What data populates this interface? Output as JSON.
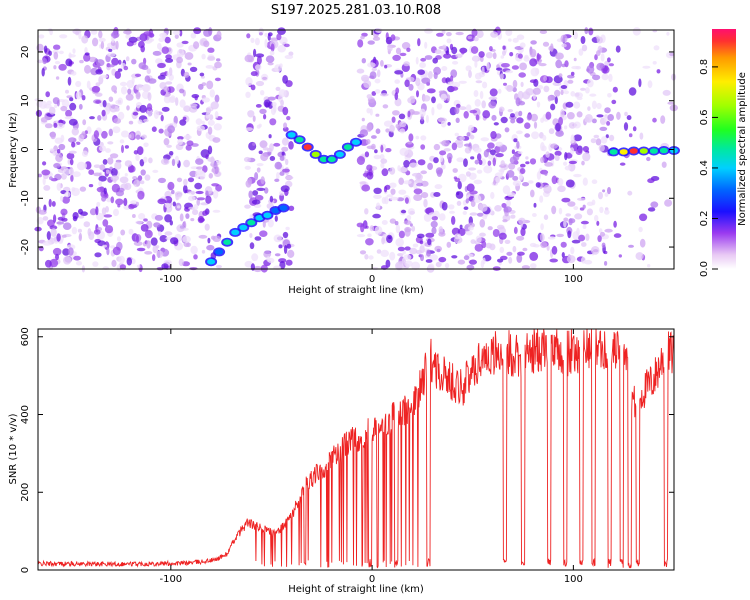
{
  "chart_data": [
    {
      "type": "heatmap",
      "title": "S197.2025.281.03.10.R08",
      "xlabel": "Height of straight line (km)",
      "ylabel": "Frequency (Hz)",
      "xlim": [
        -166,
        150
      ],
      "ylim": [
        -24.5,
        24.5
      ],
      "xticks": [
        -100,
        0,
        100
      ],
      "xtick_labels": [
        "-100",
        "0",
        "100"
      ],
      "yticks": [
        -20,
        -10,
        0,
        10,
        20
      ],
      "ytick_labels": [
        "-20",
        "-10",
        "0",
        "10",
        "20"
      ],
      "colorbar": {
        "label": "Normalized spectral amplitude",
        "range": [
          0,
          0.95
        ],
        "ticks": [
          0.0,
          0.2,
          0.4,
          0.6,
          0.8
        ],
        "tick_labels": [
          "0.0",
          "0.2",
          "0.4",
          "0.6",
          "0.8"
        ]
      },
      "blank_regions_km": [
        [
          -76,
          -62
        ],
        [
          -40,
          -6
        ]
      ],
      "signal_track": {
        "x_km": [
          -80,
          -76,
          -72,
          -68,
          -64,
          -60,
          -56,
          -52,
          -48,
          -44,
          -40,
          -36,
          -32,
          -28,
          -24,
          -20,
          -16,
          -12,
          -8,
          120,
          125,
          130,
          135,
          140,
          145,
          150
        ],
        "freq_hz": [
          -23,
          -21,
          -19,
          -17,
          -16,
          -15,
          -14,
          -13.5,
          -12.5,
          -12,
          3,
          2,
          0.5,
          -1,
          -2,
          -2,
          -1,
          0.5,
          1.5,
          -0.5,
          -0.5,
          -0.3,
          -0.3,
          -0.3,
          -0.2,
          -0.2
        ],
        "amplitude": [
          0.35,
          0.3,
          0.45,
          0.4,
          0.35,
          0.45,
          0.4,
          0.35,
          0.3,
          0.25,
          0.4,
          0.5,
          0.9,
          0.6,
          0.45,
          0.5,
          0.4,
          0.45,
          0.35,
          0.5,
          0.7,
          0.95,
          0.6,
          0.5,
          0.45,
          0.4
        ]
      }
    },
    {
      "type": "line",
      "xlabel": "Height of straight line (km)",
      "ylabel": "SNR (10 * v/v)",
      "xlim": [
        -166,
        150
      ],
      "ylim": [
        0,
        620
      ],
      "xticks": [
        -100,
        0,
        100
      ],
      "xtick_labels": [
        "-100",
        "0",
        "100"
      ],
      "yticks": [
        0,
        200,
        400,
        600
      ],
      "ytick_labels": [
        "0",
        "200",
        "400",
        "600"
      ],
      "color": "#ee2222",
      "series": [
        {
          "name": "SNR",
          "x": [
            -166,
            -150,
            -130,
            -110,
            -95,
            -85,
            -78,
            -72,
            -68,
            -62,
            -58,
            -52,
            -48,
            -44,
            -40,
            -36,
            -32,
            -28,
            -24,
            -20,
            -16,
            -12,
            -8,
            -4,
            0,
            5,
            10,
            15,
            20,
            25,
            28,
            35,
            45,
            55,
            65,
            75,
            85,
            95,
            105,
            115,
            125,
            130,
            140,
            145,
            150
          ],
          "values": [
            15,
            15,
            14,
            15,
            16,
            20,
            25,
            40,
            80,
            120,
            110,
            100,
            90,
            110,
            140,
            180,
            220,
            240,
            260,
            280,
            300,
            320,
            330,
            340,
            350,
            370,
            380,
            400,
            420,
            470,
            540,
            490,
            460,
            540,
            550,
            540,
            560,
            540,
            560,
            560,
            560,
            420,
            480,
            540,
            550
          ]
        }
      ],
      "dropouts_km": [
        -1,
        12,
        28,
        66,
        75,
        88,
        96,
        104,
        110,
        118,
        124,
        128,
        132,
        146
      ]
    }
  ]
}
